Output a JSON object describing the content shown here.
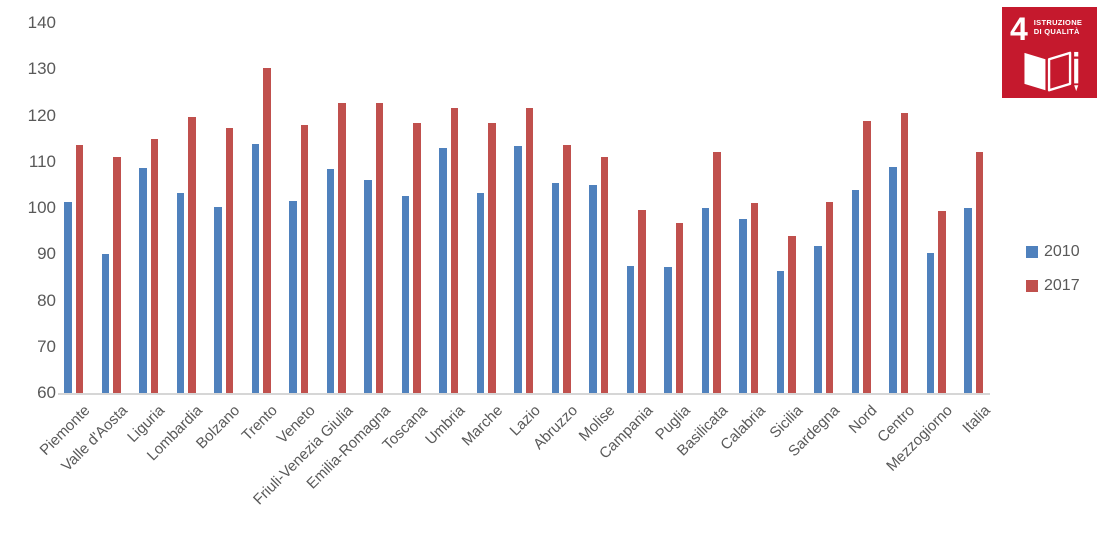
{
  "chart_data": {
    "type": "bar",
    "title": "",
    "xlabel": "",
    "ylabel": "",
    "ylim": [
      60,
      140
    ],
    "yticks": [
      140,
      130,
      120,
      110,
      100,
      90,
      80,
      70,
      60
    ],
    "grid": false,
    "legend_position": "right",
    "categories": [
      "Piemonte",
      "Valle d'Aosta",
      "Liguria",
      "Lombardia",
      "Bolzano",
      "Trento",
      "Veneto",
      "Friuli-Venezia Giulia",
      "Emilia-Romagna",
      "Toscana",
      "Umbria",
      "Marche",
      "Lazio",
      "Abruzzo",
      "Molise",
      "Campania",
      "Puglia",
      "Basilicata",
      "Calabria",
      "Sicilia",
      "Sardegna",
      "Nord",
      "Centro",
      "Mezzogiorno",
      "Italia"
    ],
    "series": [
      {
        "name": "2010",
        "color": "#4F81BD",
        "values": [
          101.4,
          90.0,
          108.7,
          103.2,
          100.3,
          113.8,
          101.6,
          108.4,
          106.1,
          102.7,
          113.0,
          103.3,
          113.4,
          105.3,
          104.9,
          87.5,
          87.3,
          100.1,
          97.7,
          86.3,
          91.7,
          103.8,
          108.9,
          90.2,
          100.0
        ]
      },
      {
        "name": "2017",
        "color": "#C0504D",
        "values": [
          113.7,
          111.1,
          115.0,
          119.7,
          117.2,
          130.3,
          117.9,
          122.6,
          122.6,
          118.3,
          121.6,
          118.4,
          121.6,
          113.7,
          111.1,
          99.5,
          96.8,
          112.2,
          101.0,
          93.9,
          101.2,
          118.9,
          120.5,
          99.3,
          112.1
        ]
      }
    ]
  },
  "axis_colors": {
    "tick_label": "#595959",
    "axis_line": "#d6d6d6"
  },
  "sdg_badge": {
    "number": "4",
    "title_line1": "ISTRUZIONE",
    "title_line2": "DI QUALITÀ",
    "color": "#C5192D",
    "icon": "open-book-and-pencil-icon"
  }
}
